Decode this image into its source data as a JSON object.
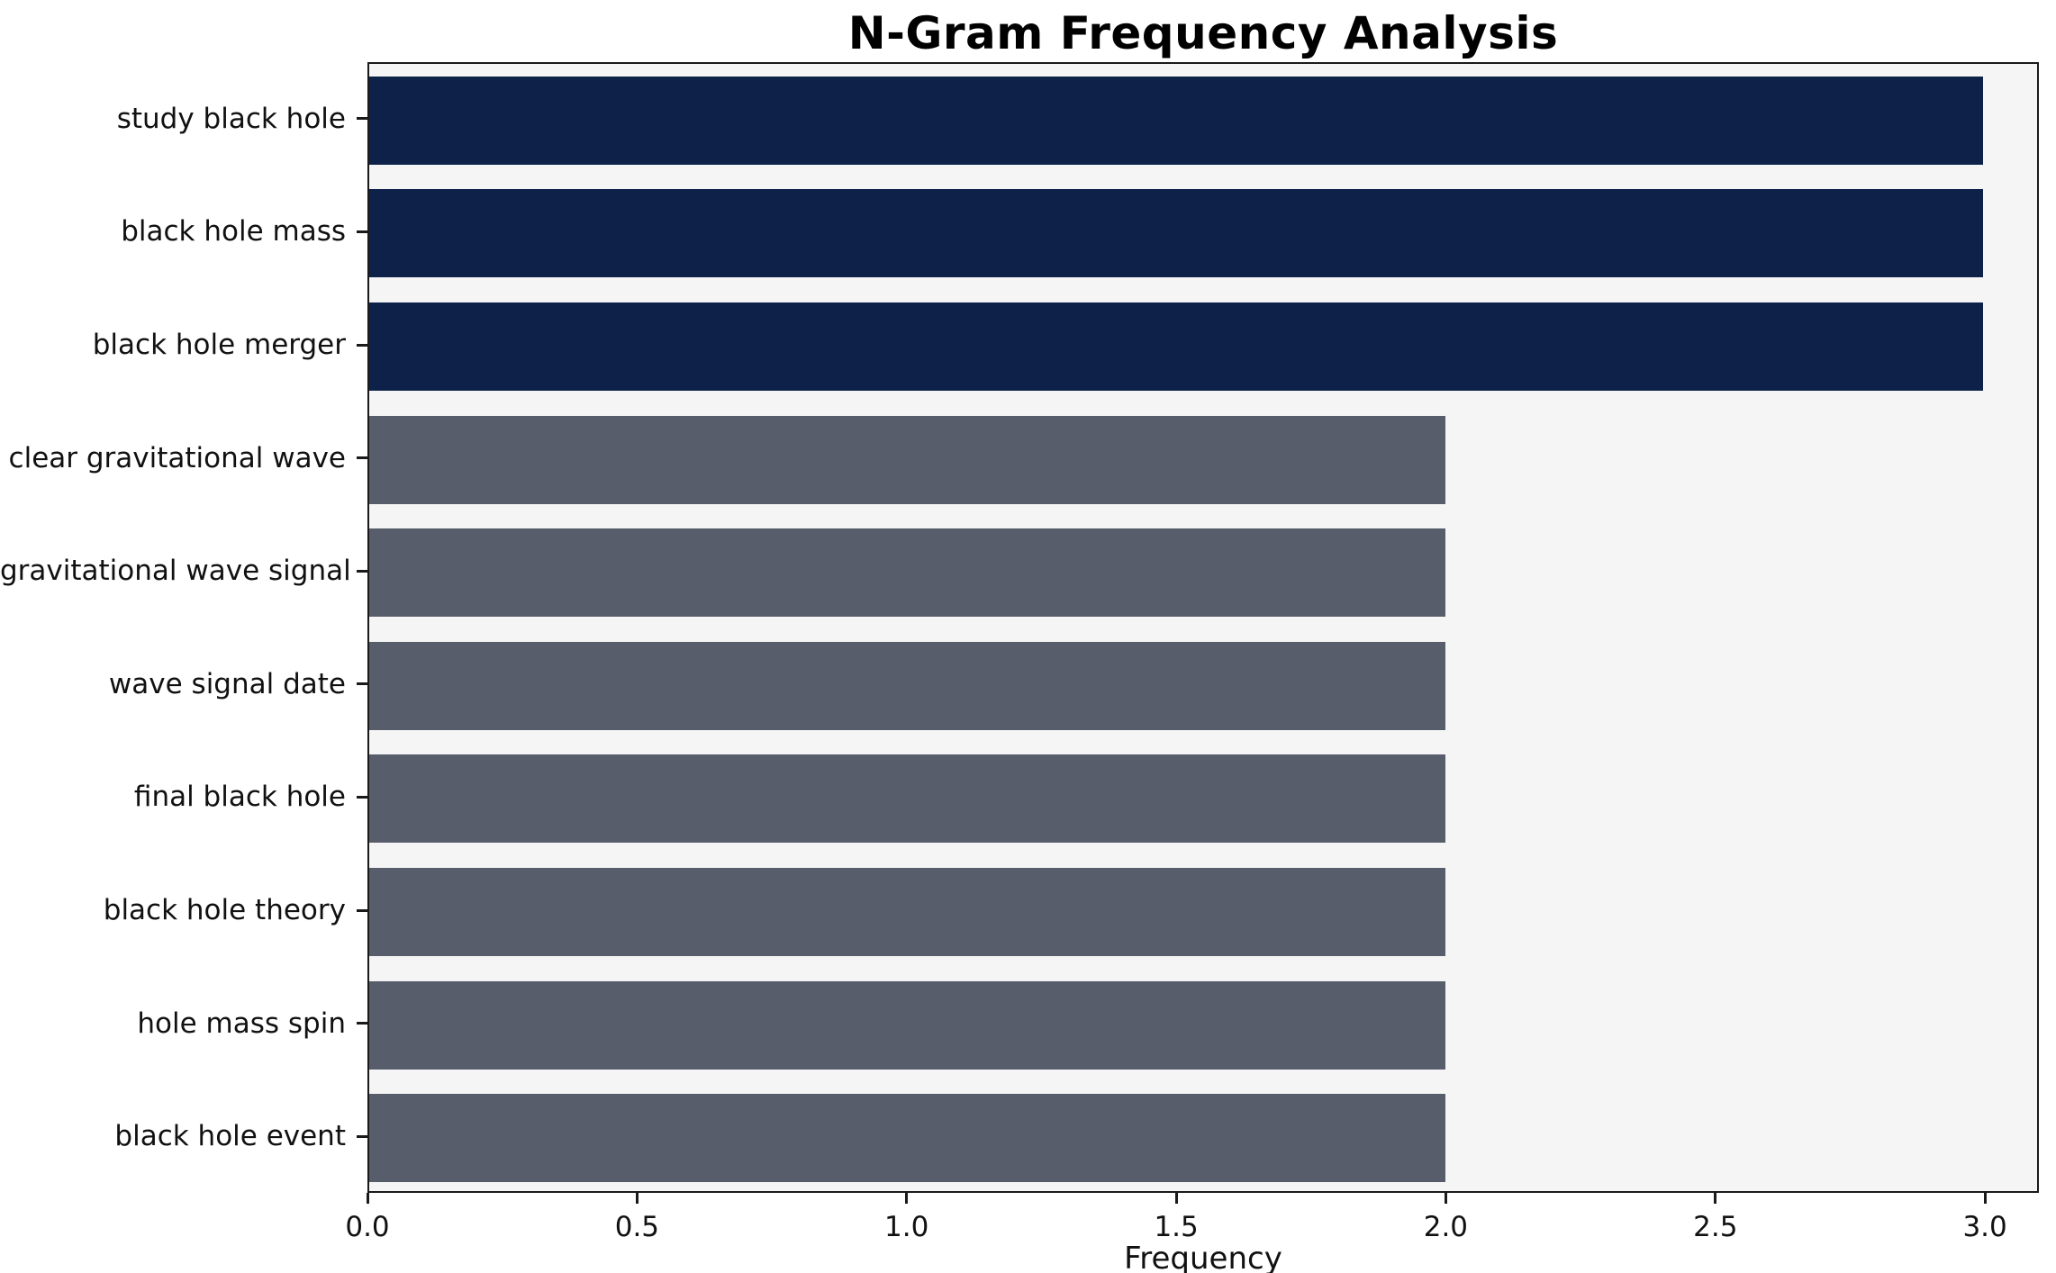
{
  "title": "N-Gram Frequency Analysis",
  "chart_data": {
    "type": "bar",
    "orientation": "horizontal",
    "title": "N-Gram Frequency Analysis",
    "categories": [
      "study black hole",
      "black hole mass",
      "black hole merger",
      "clear gravitational wave",
      "gravitational wave signal",
      "wave signal date",
      "final black hole",
      "black hole theory",
      "hole mass spin",
      "black hole event"
    ],
    "values": [
      3,
      3,
      3,
      2,
      2,
      2,
      2,
      2,
      2,
      2
    ],
    "bar_colors": [
      "#0d2149",
      "#0d2149",
      "#0d2149",
      "#585d6c",
      "#585d6c",
      "#585d6c",
      "#585d6c",
      "#585d6c",
      "#585d6c",
      "#585d6c"
    ],
    "xlabel": "Frequency",
    "ylabel": "",
    "xlim": [
      0,
      3.1
    ],
    "xticks": [
      0,
      0.5,
      1,
      1.5,
      2,
      2.5,
      3
    ],
    "xtick_labels": [
      "0.0",
      "0.5",
      "1.0",
      "1.5",
      "2.0",
      "2.5",
      "3.0"
    ],
    "grid": false,
    "legend": "none",
    "bar_band_fraction": 0.78,
    "colors": {
      "bar_high_frequency": "#0d2149",
      "bar_low_frequency": "#585d6c",
      "plot_background": "#f5f5f5",
      "figure_background": "#ffffff",
      "spine": "#1a1a1a",
      "text": "#111111"
    }
  }
}
